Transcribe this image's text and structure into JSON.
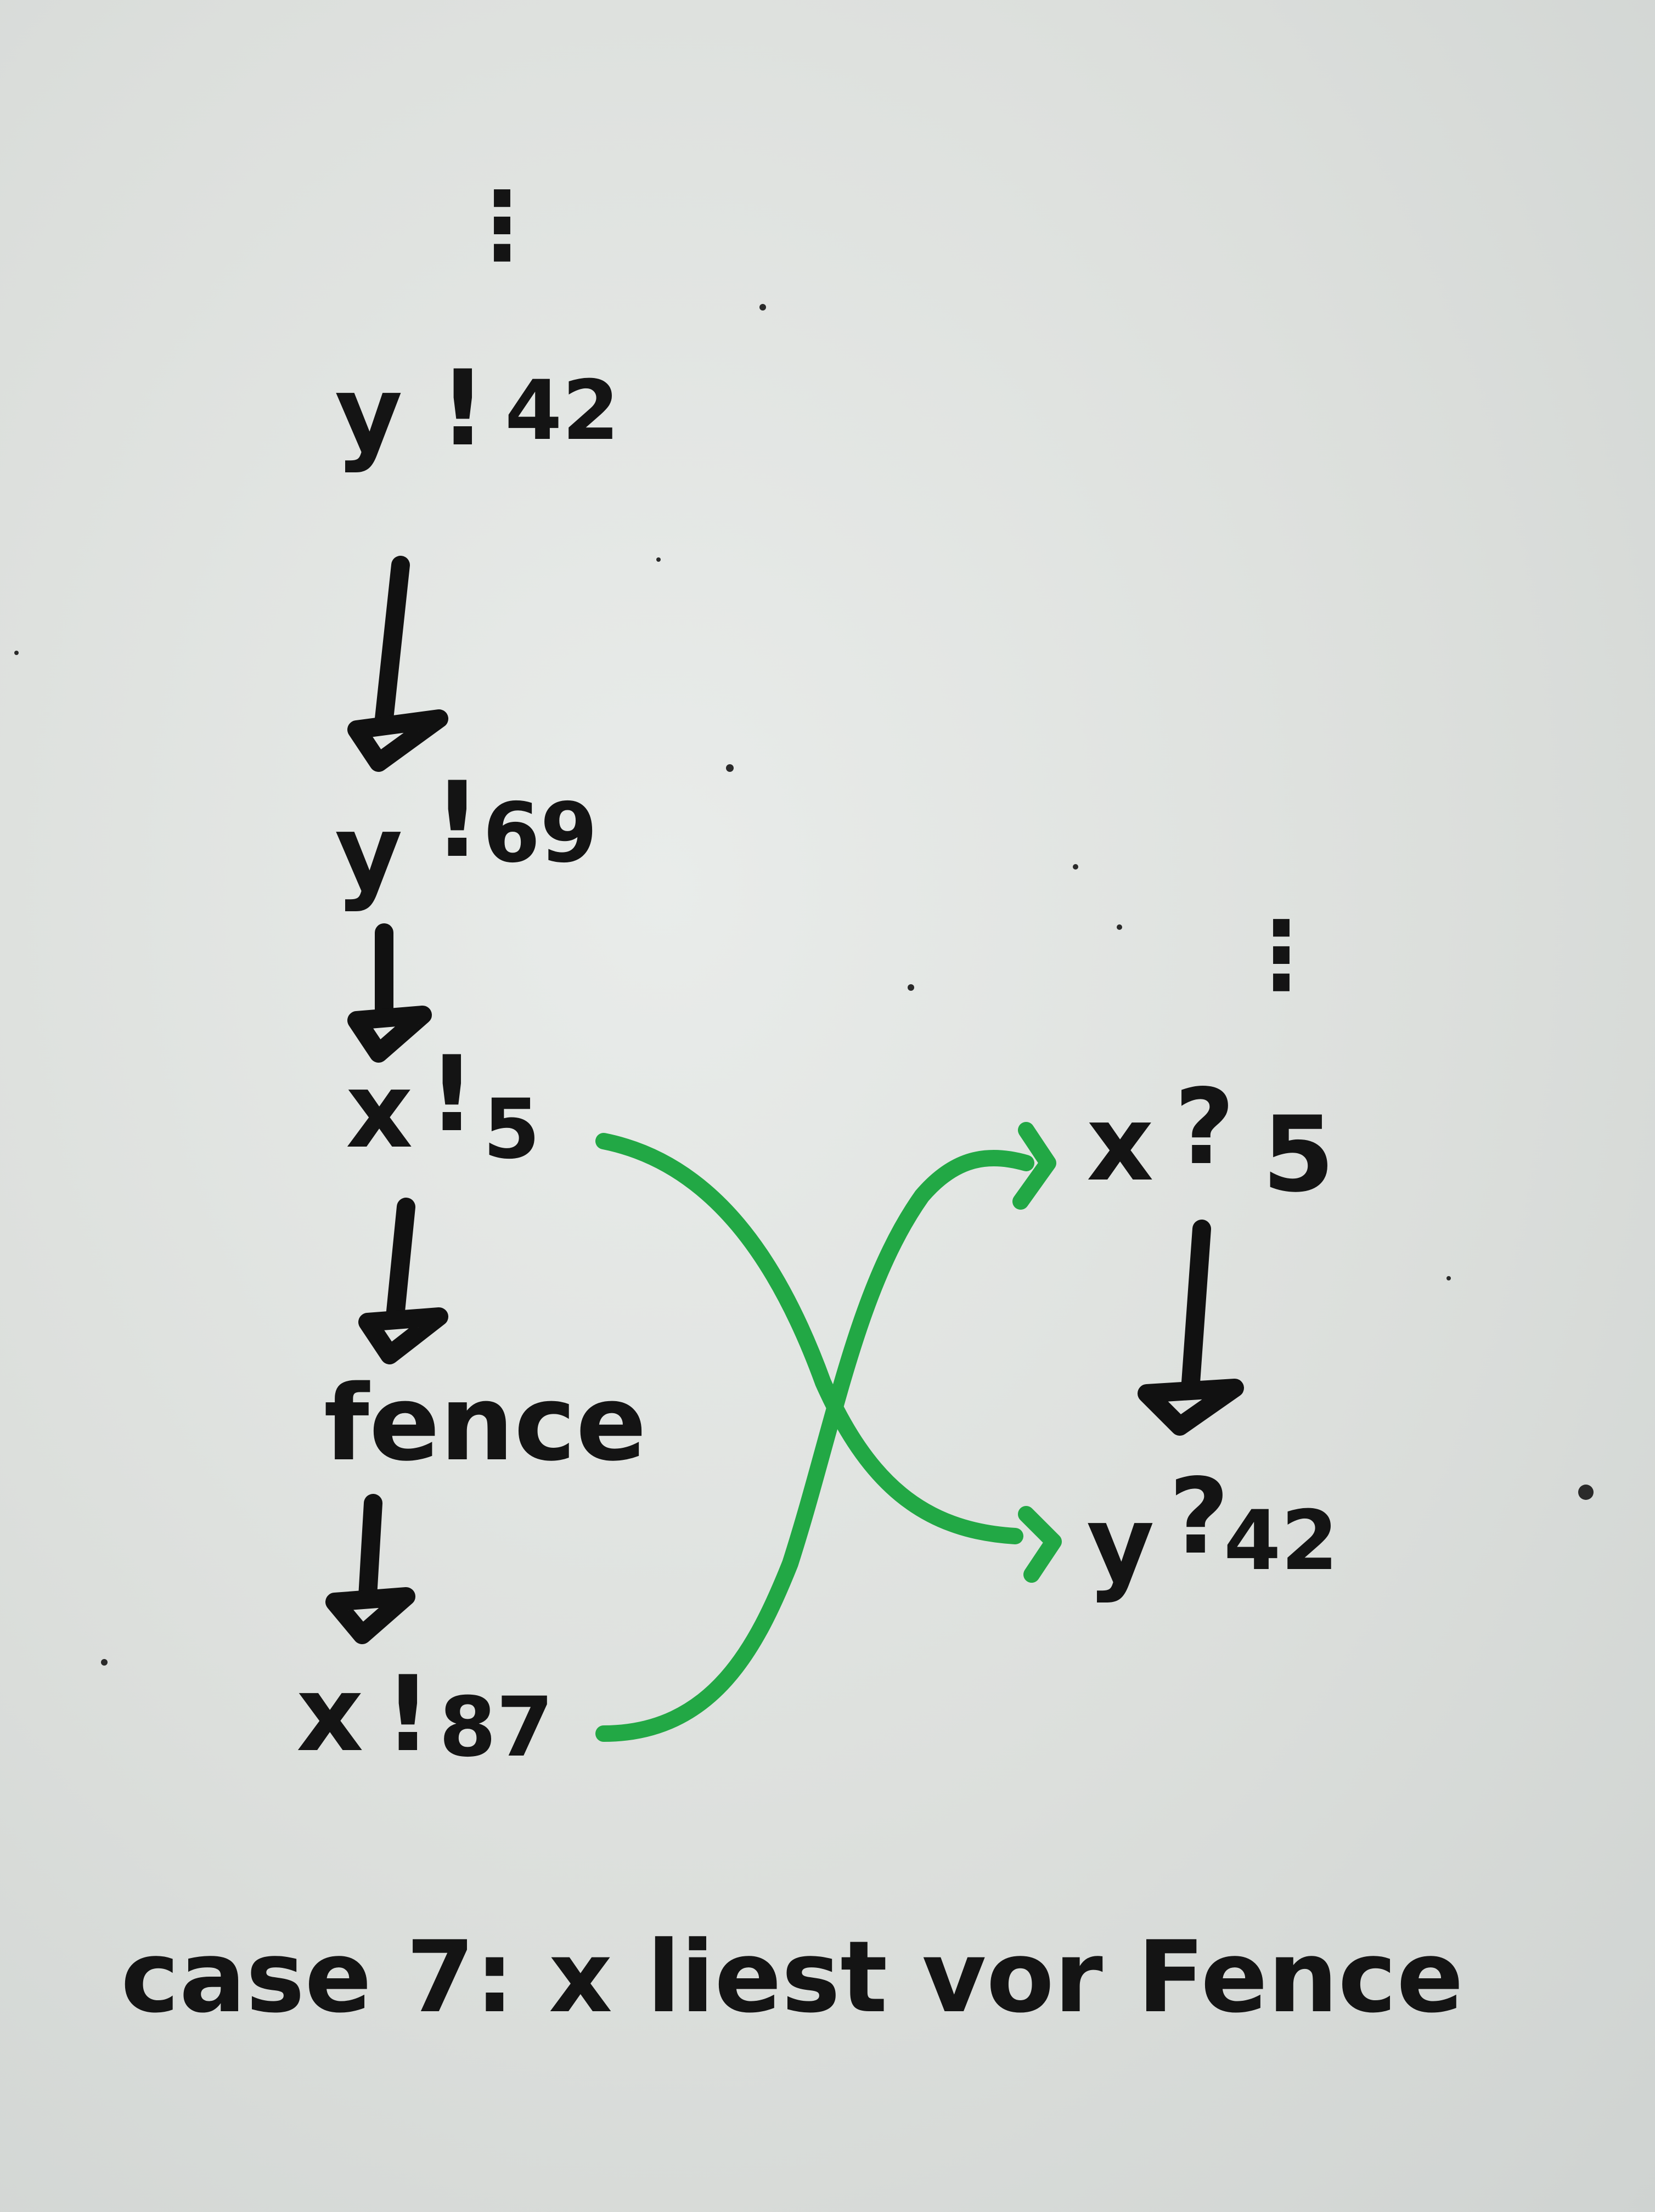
{
  "left_thread": {
    "top_ellipsis": "⋮",
    "events": [
      {
        "name": "y",
        "op": "!",
        "value": "42"
      },
      {
        "name": "y",
        "op": "!",
        "value": "69"
      },
      {
        "name": "x",
        "op": "!",
        "value": "5"
      },
      {
        "name": "fence",
        "op": "",
        "value": ""
      },
      {
        "name": "x",
        "op": "!",
        "value": "87"
      }
    ]
  },
  "right_thread": {
    "top_ellipsis": "⋮",
    "events": [
      {
        "name": "x",
        "op": "?",
        "value": "5"
      },
      {
        "name": "y",
        "op": "?",
        "value": "42"
      }
    ]
  },
  "caption": "case 7: x liest vor Fence",
  "colors": {
    "ink": "#141414",
    "crossing_arrows": "#22a845",
    "board": "#e2e5e3"
  }
}
